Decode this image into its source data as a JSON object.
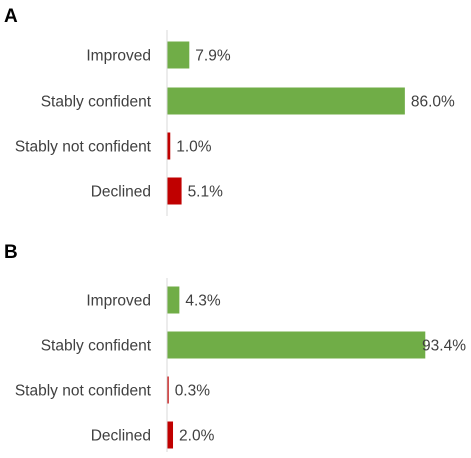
{
  "chart_data": [
    {
      "type": "bar",
      "orientation": "horizontal",
      "panel": "A",
      "categories": [
        "Improved",
        "Stably confident",
        "Stably not confident",
        "Declined"
      ],
      "values": [
        7.9,
        86.0,
        1.0,
        5.1
      ],
      "value_labels": [
        "7.9%",
        "86.0%",
        "1.0%",
        "5.1%"
      ],
      "colors": [
        "#70ad47",
        "#70ad47",
        "#c00000",
        "#c00000"
      ],
      "xlim": [
        0,
        100
      ],
      "grid": false,
      "legend": "none"
    },
    {
      "type": "bar",
      "orientation": "horizontal",
      "panel": "B",
      "categories": [
        "Improved",
        "Stably confident",
        "Stably not confident",
        "Declined"
      ],
      "values": [
        4.3,
        93.4,
        0.3,
        2.0
      ],
      "value_labels": [
        "4.3%",
        "93.4%",
        "0.3%",
        "2.0%"
      ],
      "colors": [
        "#70ad47",
        "#70ad47",
        "#c00000",
        "#c00000"
      ],
      "xlim": [
        0,
        100
      ],
      "grid": false,
      "legend": "none"
    }
  ]
}
